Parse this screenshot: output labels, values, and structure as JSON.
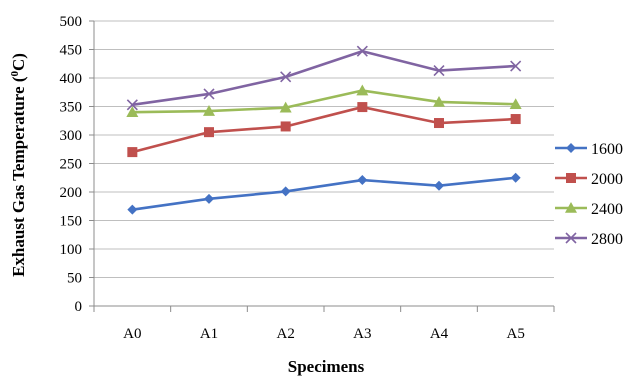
{
  "chart_data": {
    "type": "line",
    "title": "",
    "xlabel": "Specimens",
    "ylabel_main": "Exhaust Gas Temperature (",
    "ylabel_sup": "0",
    "ylabel_end": "C)",
    "categories": [
      "A0",
      "A1",
      "A2",
      "A3",
      "A4",
      "A5"
    ],
    "ylim": [
      0,
      500
    ],
    "yticks": [
      "0",
      "50",
      "100",
      "150",
      "200",
      "250",
      "300",
      "350",
      "400",
      "450",
      "500"
    ],
    "grid": true,
    "legend_position": "right",
    "series": [
      {
        "name": "1600",
        "values": [
          169,
          188,
          201,
          221,
          211,
          225
        ],
        "color": "#4472C4",
        "marker": "diamond"
      },
      {
        "name": "2000",
        "values": [
          270,
          305,
          315,
          349,
          321,
          328
        ],
        "color": "#C0504D",
        "marker": "square"
      },
      {
        "name": "2400",
        "values": [
          340,
          342,
          348,
          378,
          358,
          354
        ],
        "color": "#9BBB59",
        "marker": "triangle"
      },
      {
        "name": "2800",
        "values": [
          353,
          372,
          402,
          447,
          413,
          421
        ],
        "color": "#8064A2",
        "marker": "x"
      }
    ]
  }
}
